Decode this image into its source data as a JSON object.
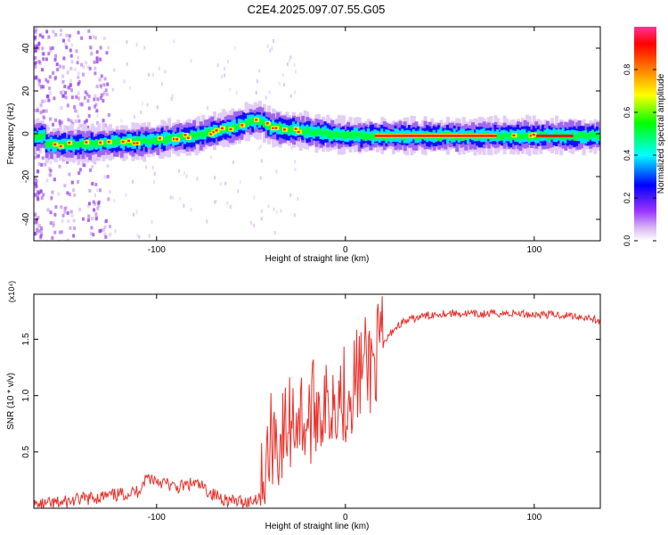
{
  "title": "C2E4.2025.097.07.55.G05",
  "chart_data": [
    {
      "type": "heatmap",
      "xlabel": "Height of straight line (km)",
      "ylabel": "Frequency (Hz)",
      "xlim": [
        -165,
        135
      ],
      "ylim": [
        -50,
        50
      ],
      "x_ticks": [
        -100,
        0,
        100
      ],
      "y_ticks": [
        -40,
        -20,
        0,
        20,
        40
      ],
      "colorbar": {
        "label": "Normalized spectral amplitude",
        "range": [
          0,
          1
        ],
        "ticks": [
          "0.0",
          "0.2",
          "0.4",
          "0.6",
          "0.8"
        ],
        "colormap": [
          "#ffffff",
          "#d8b4f0",
          "#9933ff",
          "#0000ff",
          "#00ffff",
          "#00ff00",
          "#ffff00",
          "#ff8000",
          "#ff0000",
          "#ff3399"
        ]
      },
      "ridge_centerline": {
        "x": [
          -160,
          -140,
          -120,
          -100,
          -80,
          -60,
          -50,
          -45,
          -40,
          -30,
          -20,
          -10,
          0,
          20,
          40,
          60,
          80,
          100,
          120,
          135
        ],
        "frequency_hz": [
          -5,
          -5,
          -4,
          -3,
          -1,
          3,
          6,
          6,
          3,
          2,
          1,
          0,
          -1,
          -1,
          -1,
          -1,
          -1,
          -1,
          -1,
          -1
        ]
      }
    },
    {
      "type": "line",
      "xlabel": "Height of straight line (km)",
      "ylabel": "SNR (10 * v/v)",
      "y_multiplier": "(x10⁴)",
      "xlim": [
        -165,
        135
      ],
      "ylim": [
        0,
        1.9
      ],
      "x_ticks": [
        -100,
        0,
        100
      ],
      "y_ticks": [
        0.5,
        1.0,
        1.5
      ],
      "y_tick_labels": [
        "0.5",
        "1.0",
        "1.5"
      ],
      "series": [
        {
          "color": "#e8302a",
          "x": [
            -165,
            -150,
            -140,
            -130,
            -120,
            -110,
            -105,
            -100,
            -95,
            -90,
            -85,
            -80,
            -75,
            -70,
            -60,
            -50,
            -45,
            -42,
            -40,
            -38,
            -35,
            -30,
            -25,
            -20,
            -15,
            -10,
            -5,
            0,
            5,
            10,
            15,
            20,
            25,
            30,
            40,
            50,
            60,
            70,
            80,
            90,
            100,
            110,
            120,
            130,
            135
          ],
          "y": [
            0.02,
            0.05,
            0.08,
            0.1,
            0.12,
            0.15,
            0.28,
            0.25,
            0.22,
            0.18,
            0.2,
            0.22,
            0.18,
            0.12,
            0.06,
            0.06,
            0.12,
            0.3,
            0.55,
            0.7,
            0.55,
            0.75,
            0.85,
            0.75,
            0.95,
            0.85,
            1.05,
            1.0,
            1.15,
            1.25,
            1.3,
            1.45,
            1.58,
            1.65,
            1.7,
            1.73,
            1.73,
            1.72,
            1.73,
            1.73,
            1.72,
            1.72,
            1.71,
            1.69,
            1.65
          ]
        }
      ]
    }
  ]
}
